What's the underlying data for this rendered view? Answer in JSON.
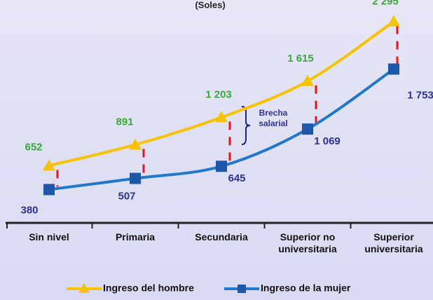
{
  "chart_data": {
    "type": "line",
    "subtitle": "(Soles)",
    "categories": [
      "Sin nivel",
      "Primaria",
      "Secundaria",
      "Superior no universitaria",
      "Superior universitaria"
    ],
    "series": [
      {
        "name": "Ingreso del hombre",
        "color": "#f7c300",
        "marker_color": "#f7c300",
        "label_color": "#3aa83a",
        "marker": "triangle",
        "values": [
          652,
          891,
          1203,
          1615,
          2295
        ],
        "value_labels": [
          "652",
          "891",
          "1 203",
          "1 615",
          "2 295"
        ]
      },
      {
        "name": "Ingreso de la mujer",
        "color": "#1f78c8",
        "marker_color": "#1f57a8",
        "label_color": "#2e3192",
        "marker": "square",
        "values": [
          380,
          507,
          645,
          1069,
          1753
        ],
        "value_labels": [
          "380",
          "507",
          "645",
          "1 069",
          "1 753"
        ]
      }
    ],
    "annotation": "Brecha salarial",
    "ylim": [
      0,
      2500
    ],
    "grid": false,
    "legend": "bottom"
  }
}
